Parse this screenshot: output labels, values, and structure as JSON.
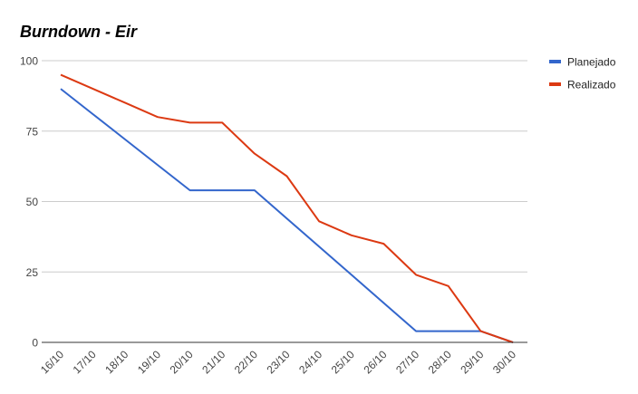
{
  "chart_data": {
    "type": "line",
    "title": "Burndown - Eir",
    "xlabel": "",
    "ylabel": "",
    "categories": [
      "16/10",
      "17/10",
      "18/10",
      "19/10",
      "20/10",
      "21/10",
      "22/10",
      "23/10",
      "24/10",
      "25/10",
      "26/10",
      "27/10",
      "28/10",
      "29/10",
      "30/10"
    ],
    "ylim": [
      0,
      100
    ],
    "yticks": [
      "0",
      "25",
      "50",
      "75",
      "100"
    ],
    "grid": true,
    "legend_position": "right",
    "series": [
      {
        "name": "Planejado",
        "color": "#3366cc",
        "values": [
          90,
          81,
          72,
          63,
          54,
          54,
          54,
          44,
          34,
          24,
          14,
          4,
          4,
          4,
          0
        ]
      },
      {
        "name": "Realizado",
        "color": "#dc3912",
        "values": [
          95,
          90,
          85,
          80,
          78,
          78,
          67,
          59,
          43,
          38,
          35,
          24,
          20,
          4,
          0
        ]
      }
    ]
  }
}
